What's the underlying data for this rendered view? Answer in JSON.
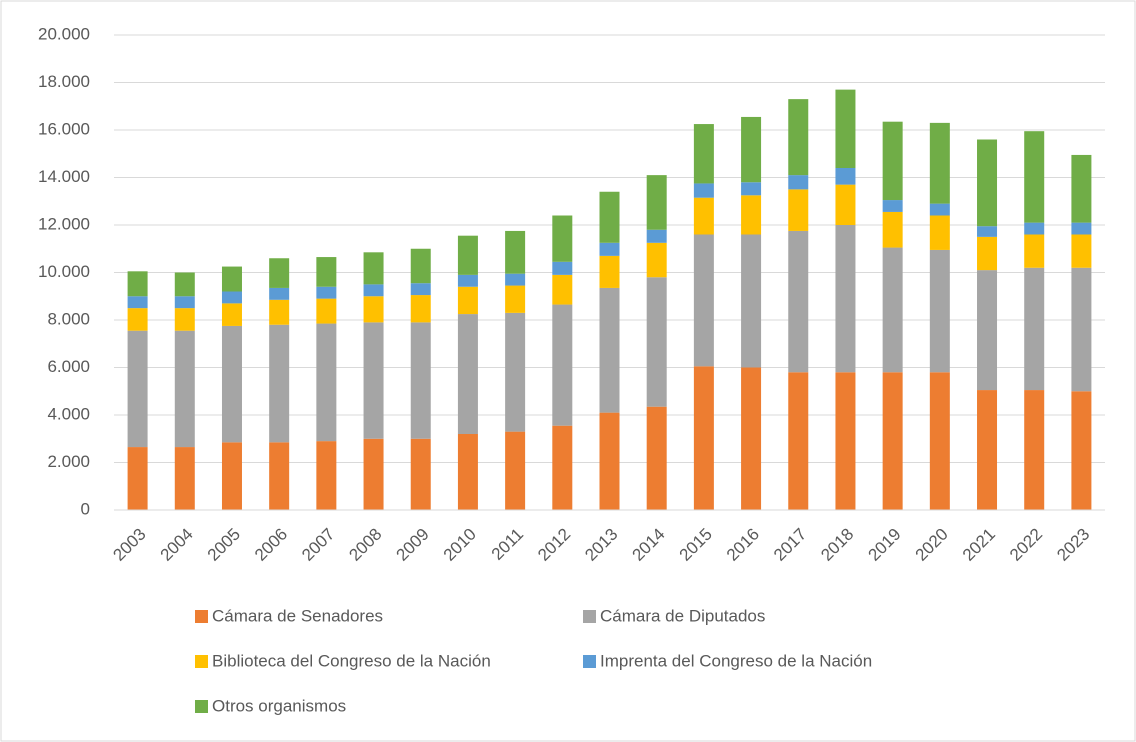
{
  "chart_data": {
    "type": "stacked_bar",
    "categories": [
      "2003",
      "2004",
      "2005",
      "2006",
      "2007",
      "2008",
      "2009",
      "2010",
      "2011",
      "2012",
      "2013",
      "2014",
      "2015",
      "2016",
      "2017",
      "2018",
      "2019",
      "2020",
      "2021",
      "2022",
      "2023"
    ],
    "series": [
      {
        "name": "Cámara de Senadores",
        "color": "#ed7d31",
        "values": [
          2650,
          2650,
          2850,
          2850,
          2900,
          3000,
          3000,
          3200,
          3300,
          3550,
          4100,
          4350,
          6050,
          6000,
          5800,
          5800,
          5800,
          5800,
          5050,
          5050,
          5000
        ]
      },
      {
        "name": "Cámara de Diputados",
        "color": "#a5a5a5",
        "values": [
          4900,
          4900,
          4900,
          4950,
          4950,
          4900,
          4900,
          5050,
          5000,
          5100,
          5250,
          5450,
          5550,
          5600,
          5950,
          6200,
          5250,
          5150,
          5050,
          5150,
          5200
        ]
      },
      {
        "name": "Biblioteca del Congreso de la Nación",
        "color": "#ffc000",
        "values": [
          950,
          950,
          950,
          1050,
          1050,
          1100,
          1150,
          1150,
          1150,
          1250,
          1350,
          1450,
          1550,
          1650,
          1750,
          1700,
          1500,
          1450,
          1400,
          1400,
          1400
        ]
      },
      {
        "name": "Imprenta del Congreso de la Nación",
        "color": "#5b9bd5",
        "values": [
          500,
          500,
          500,
          500,
          500,
          500,
          500,
          500,
          500,
          550,
          550,
          550,
          600,
          550,
          600,
          700,
          500,
          500,
          450,
          500,
          500
        ]
      },
      {
        "name": "Otros organismos",
        "color": "#70ad47",
        "values": [
          1050,
          1000,
          1050,
          1250,
          1250,
          1350,
          1450,
          1650,
          1800,
          1950,
          2150,
          2300,
          2500,
          2750,
          3200,
          3300,
          3300,
          3400,
          3650,
          3850,
          2850
        ]
      }
    ],
    "ylim": [
      0,
      20000
    ],
    "yticks": [
      0,
      {
        "value": 2000,
        "label": "2.000"
      },
      {
        "value": 4000,
        "label": "4.000"
      },
      {
        "value": 6000,
        "label": "6.000"
      },
      {
        "value": 8000,
        "label": "8.000"
      },
      {
        "value": 10000,
        "label": "10.000"
      },
      {
        "value": 12000,
        "label": "12.000"
      },
      {
        "value": 14000,
        "label": "14.000"
      },
      {
        "value": 16000,
        "label": "16.000"
      },
      {
        "value": 18000,
        "label": "18.000"
      },
      {
        "value": 20000,
        "label": "20.000"
      }
    ],
    "grid": true,
    "legend": "bottom"
  }
}
